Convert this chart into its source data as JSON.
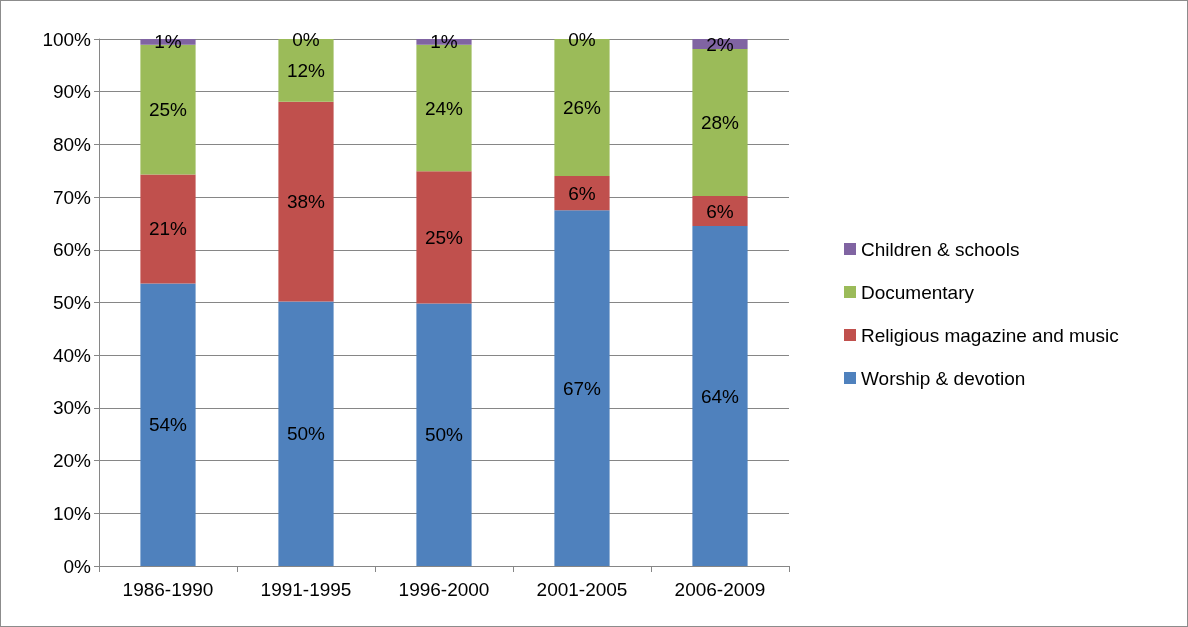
{
  "chart_data": {
    "type": "bar",
    "stacked": true,
    "categories": [
      "1986-1990",
      "1991-1995",
      "1996-2000",
      "2001-2005",
      "2006-2009"
    ],
    "series": [
      {
        "name": "Worship & devotion",
        "color": "#4f81bd",
        "values": [
          53.6,
          50.2,
          49.8,
          67.5,
          64.5
        ],
        "value_labels": [
          "54%",
          "50%",
          "50%",
          "67%",
          "64%"
        ]
      },
      {
        "name": "Religious magazine and music",
        "color": "#c0504d",
        "values": [
          20.7,
          37.9,
          25.1,
          6.5,
          5.7
        ],
        "value_labels": [
          "21%",
          "38%",
          "25%",
          "6%",
          "6%"
        ]
      },
      {
        "name": "Documentary",
        "color": "#9bbb59",
        "values": [
          24.6,
          11.9,
          24,
          26,
          27.9
        ],
        "value_labels": [
          "25%",
          "12%",
          "24%",
          "26%",
          "28%"
        ]
      },
      {
        "name": "Children & schools",
        "color": "#8064a2",
        "values": [
          1.1,
          0,
          1.1,
          0,
          1.9
        ],
        "value_labels": [
          "1%",
          "0%",
          "1%",
          "0%",
          "2%"
        ]
      }
    ],
    "ylim": [
      0,
      100
    ],
    "yticks": [
      {
        "value": 0,
        "label": "0%"
      },
      {
        "value": 10,
        "label": "10%"
      },
      {
        "value": 20,
        "label": "20%"
      },
      {
        "value": 30,
        "label": "30%"
      },
      {
        "value": 40,
        "label": "40%"
      },
      {
        "value": 50,
        "label": "50%"
      },
      {
        "value": 60,
        "label": "60%"
      },
      {
        "value": 70,
        "label": "70%"
      },
      {
        "value": 80,
        "label": "80%"
      },
      {
        "value": 90,
        "label": "90%"
      },
      {
        "value": 100,
        "label": "100%"
      }
    ],
    "grid": "y",
    "legend": "right"
  }
}
